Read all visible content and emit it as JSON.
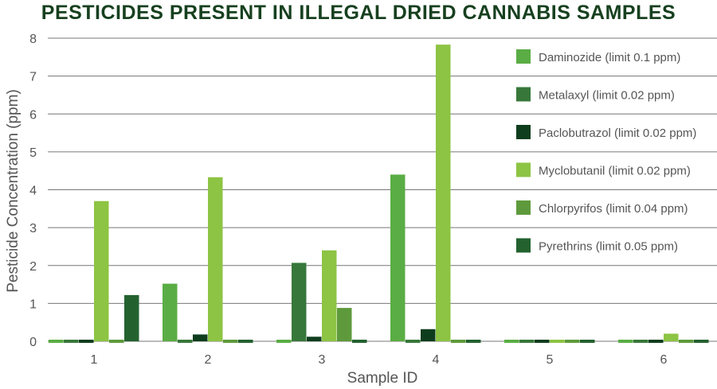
{
  "chart_data": {
    "type": "bar",
    "title": "PESTICIDES PRESENT IN ILLEGAL DRIED CANNABIS SAMPLES",
    "xlabel": "Sample ID",
    "ylabel": "Pesticide Concentration (ppm)",
    "ylim": [
      0,
      8
    ],
    "yticks": [
      0,
      1,
      2,
      3,
      4,
      5,
      6,
      7,
      8
    ],
    "grid": true,
    "legend": "top-right",
    "categories": [
      "1",
      "2",
      "3",
      "4",
      "5",
      "6"
    ],
    "series": [
      {
        "name": "Daminozide (limit 0.1 ppm)",
        "color": "#5aad44",
        "values": [
          0,
          1.52,
          0,
          4.4,
          0,
          0
        ]
      },
      {
        "name": "Metalaxyl (limit 0.02 ppm)",
        "color": "#37783a",
        "values": [
          0,
          0,
          2.07,
          0,
          0,
          0
        ]
      },
      {
        "name": "Paclobutrazol (limit 0.02 ppm)",
        "color": "#0e3d1d",
        "values": [
          0,
          0.18,
          0.12,
          0.32,
          0,
          0
        ]
      },
      {
        "name": "Myclobutanil (limit 0.02 ppm)",
        "color": "#8dc443",
        "values": [
          3.7,
          4.33,
          2.4,
          7.83,
          0,
          0.2
        ]
      },
      {
        "name": "Chlorpyrifos (limit 0.04 ppm)",
        "color": "#5e9a3c",
        "values": [
          0,
          0,
          0.88,
          0,
          0,
          0
        ]
      },
      {
        "name": "Pyrethrins (limit 0.05 ppm)",
        "color": "#23622f",
        "values": [
          1.22,
          0,
          0,
          0,
          0,
          0
        ]
      }
    ]
  }
}
